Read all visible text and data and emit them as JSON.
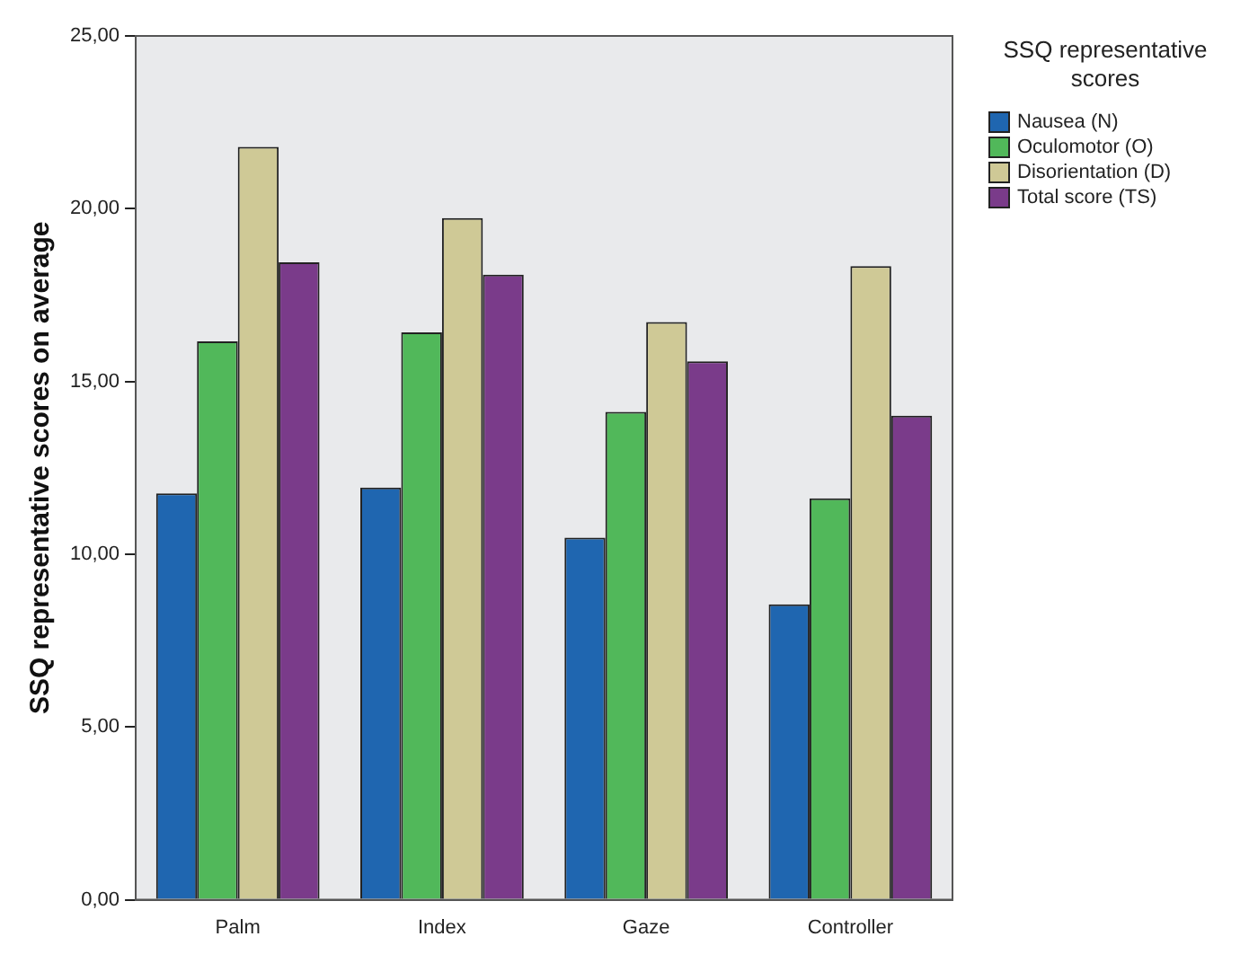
{
  "chart_data": {
    "type": "bar",
    "ylabel": "SSQ representative scores on average",
    "legend_title": "SSQ representative scores",
    "legend": "top right",
    "grid": false,
    "categories": [
      "Palm",
      "Index",
      "Gaze",
      "Controller"
    ],
    "series": [
      {
        "name": "Nausea (N)",
        "color": "#1f66b0",
        "values": [
          11.76,
          11.93,
          10.48,
          8.55
        ]
      },
      {
        "name": "Oculomotor (O)",
        "color": "#51b85a",
        "values": [
          16.16,
          16.42,
          14.12,
          11.62
        ]
      },
      {
        "name": "Disorientation (D)",
        "color": "#cfc996",
        "values": [
          21.79,
          19.73,
          16.72,
          18.34
        ]
      },
      {
        "name": "Total score (TS)",
        "color": "#7a3b8a",
        "values": [
          18.45,
          18.09,
          15.58,
          14.01
        ]
      }
    ],
    "ylim": [
      0,
      25
    ],
    "yticks": [
      {
        "value": 0,
        "label": "0,00"
      },
      {
        "value": 5,
        "label": "5,00"
      },
      {
        "value": 10,
        "label": "10,00"
      },
      {
        "value": 15,
        "label": "15,00"
      },
      {
        "value": 20,
        "label": "20,00"
      },
      {
        "value": 25,
        "label": "25,00"
      }
    ]
  }
}
